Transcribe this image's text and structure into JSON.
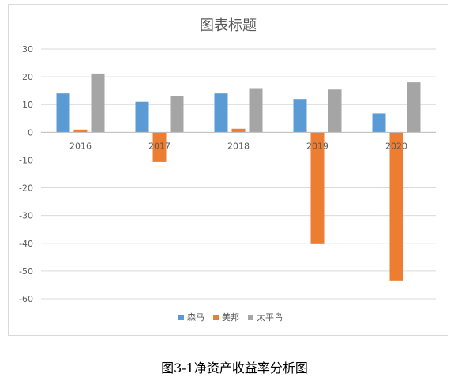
{
  "chart_data": {
    "type": "bar",
    "title": "图表标题",
    "categories": [
      "2016",
      "2017",
      "2018",
      "2019",
      "2020"
    ],
    "series": [
      {
        "name": "森马",
        "color": "#5b9bd5",
        "values": [
          14,
          11,
          14,
          12,
          6.8
        ]
      },
      {
        "name": "美邦",
        "color": "#ed7d31",
        "values": [
          1,
          -10.7,
          1.3,
          -40.3,
          -53.4
        ]
      },
      {
        "name": "太平鸟",
        "color": "#a5a5a5",
        "values": [
          21.2,
          13.2,
          15.9,
          15.4,
          18
        ]
      }
    ],
    "yticks": [
      "30",
      "20",
      "10",
      "0",
      "-10",
      "-20",
      "-30",
      "-40",
      "-50",
      "-60"
    ],
    "ylim": [
      -60,
      30
    ],
    "grid": true,
    "legend": "bottom",
    "xlabel": "",
    "ylabel": ""
  },
  "caption": "图3-1净资产收益率分析图"
}
